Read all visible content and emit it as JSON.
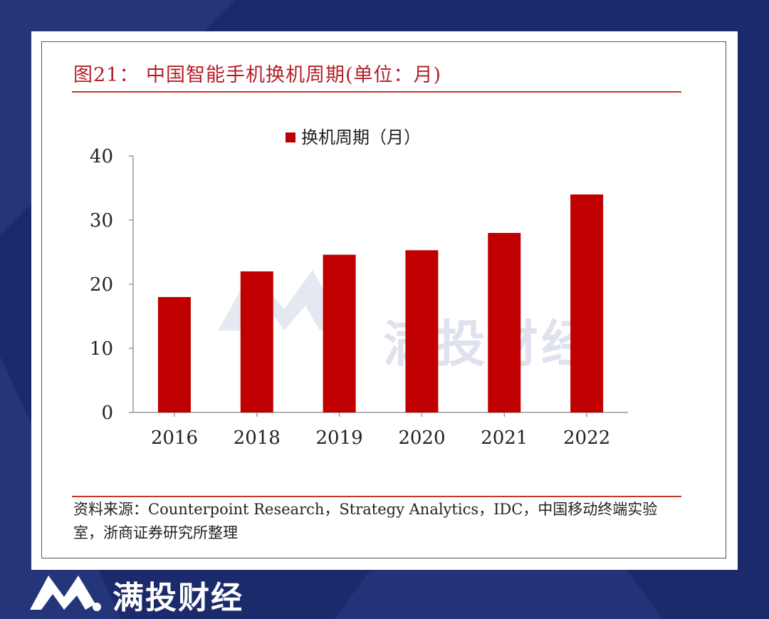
{
  "figure": {
    "title": "图21： 中国智能手机换机周期(单位：月)",
    "source": "资料来源：Counterpoint Research，Strategy Analytics，IDC，中国移动终端实验室，浙商证券研究所整理"
  },
  "brand": {
    "name": "满投财经",
    "watermark": "满投财经",
    "logo_icon": "mantou-logo-icon"
  },
  "colors": {
    "background": "#1b2a6b",
    "bar": "#c00000",
    "title": "#b3202a",
    "rule": "#c0392b"
  },
  "chart_data": {
    "type": "bar",
    "categories": [
      "2016",
      "2018",
      "2019",
      "2020",
      "2021",
      "2022"
    ],
    "series": [
      {
        "name": "换机周期（月）",
        "values": [
          18,
          22,
          24.6,
          25.3,
          28,
          34
        ]
      }
    ],
    "yticks": [
      0,
      10,
      20,
      30,
      40
    ],
    "ylim": [
      0,
      40
    ],
    "legend_position": "top-center",
    "grid": false
  }
}
